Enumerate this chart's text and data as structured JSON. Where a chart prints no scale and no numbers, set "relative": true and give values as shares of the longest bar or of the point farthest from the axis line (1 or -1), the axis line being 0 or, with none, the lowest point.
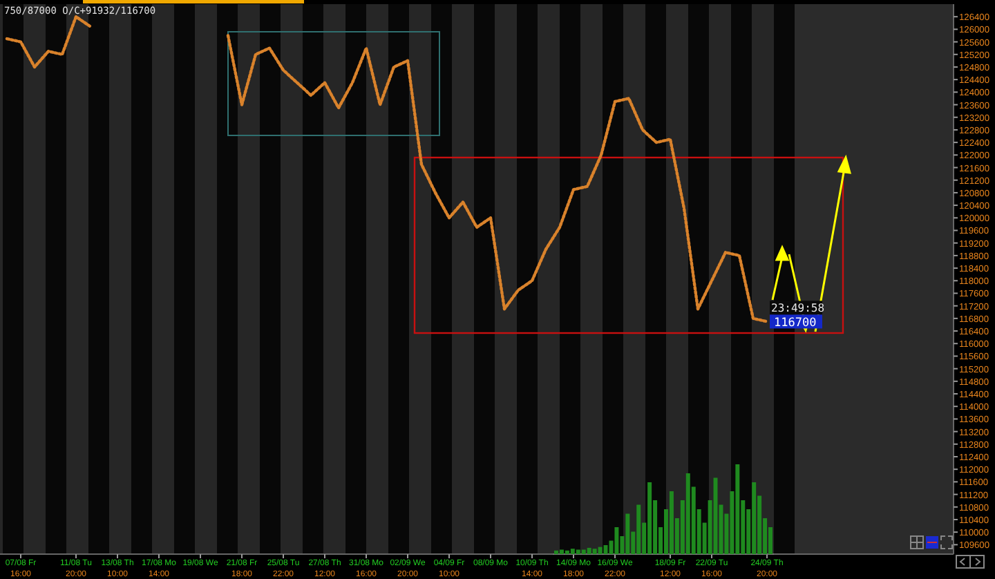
{
  "chart_data": [
    {
      "type": "line",
      "ylim": [
        109300,
        126800
      ],
      "yticks": [
        109600,
        110000,
        110400,
        110800,
        111200,
        111600,
        112000,
        112400,
        112800,
        113200,
        113600,
        114000,
        114400,
        114800,
        115200,
        115600,
        116000,
        116400,
        116800,
        117200,
        117600,
        118000,
        118400,
        118800,
        119200,
        119600,
        120000,
        120400,
        120800,
        121200,
        121600,
        122000,
        122400,
        122800,
        123200,
        123600,
        124000,
        124400,
        124800,
        125200,
        125600,
        126000,
        126400
      ],
      "categories": [
        null,
        "07/08 Fr\n16:00",
        null,
        null,
        null,
        "11/08 Tu\n20:00",
        null,
        null,
        "13/08 Th\n10:00",
        null,
        null,
        "17/08 Mo\n14:00",
        null,
        null,
        "19/08 We",
        null,
        null,
        "21/08 Fr\n18:00",
        null,
        null,
        "25/08 Tu\n22:00",
        null,
        null,
        "27/08 Th\n12:00",
        null,
        null,
        "31/08 Mo\n16:00",
        null,
        null,
        "02/09 We\n20:00",
        null,
        null,
        "04/09 Fr\n10:00",
        null,
        null,
        "08/09 Mo",
        null,
        null,
        "10/09 Th\n14:00",
        null,
        null,
        "14/09 Mo\n18:00",
        null,
        null,
        "16/09 We\n22:00",
        null,
        null,
        null,
        "18/09 Fr\n12:00",
        null,
        null,
        "22/09 Tu\n16:00",
        null,
        null,
        null,
        "24/09 Th\n20:00",
        null,
        null,
        null,
        null,
        null,
        null,
        null,
        null,
        null,
        null,
        null,
        null,
        null
      ],
      "grid": false,
      "annotations": [
        "750/87000  O/C+91932/116700",
        "23:49:58",
        "116700"
      ],
      "series": [
        {
          "color": "#d9822b",
          "line_style": "dotted",
          "values": [
            125700,
            125600,
            124800,
            125300,
            125200,
            126400,
            126100,
            null,
            null,
            null,
            null,
            null,
            null,
            null,
            null,
            null,
            125800,
            123600,
            125200,
            125400,
            124700,
            124300,
            123900,
            124300,
            123500,
            124300,
            125400,
            123600,
            124800,
            125000,
            121700,
            120800,
            120000,
            120500,
            119700,
            120000,
            117100,
            117700,
            118000,
            119000,
            119700,
            120900,
            121000,
            122000,
            123700,
            123800,
            122800,
            122400,
            122500,
            120300,
            117100,
            118000,
            118900,
            118800,
            116800,
            116700,
            null,
            null,
            null,
            null,
            null,
            null,
            null,
            null,
            null,
            null,
            null,
            null,
            null
          ]
        }
      ]
    },
    {
      "type": "bar",
      "relative": true,
      "categories": [
        null,
        null,
        null,
        null,
        null,
        null,
        null,
        null,
        null,
        null,
        null,
        null,
        null,
        null,
        null,
        null,
        null,
        null,
        null,
        null,
        null,
        null,
        null,
        null,
        null,
        null,
        null,
        null,
        null,
        null,
        null,
        null,
        null,
        null,
        null,
        null,
        null,
        null,
        null,
        null
      ],
      "color": "#1f8a1f",
      "values": [
        0.04,
        0.05,
        0.04,
        0.06,
        0.05,
        0.05,
        0.07,
        0.06,
        0.08,
        0.1,
        0.15,
        0.3,
        0.2,
        0.45,
        0.25,
        0.55,
        0.35,
        0.8,
        0.6,
        0.3,
        0.5,
        0.7,
        0.4,
        0.6,
        0.9,
        0.75,
        0.5,
        0.35,
        0.6,
        0.85,
        0.55,
        0.45,
        0.7,
        1.0,
        0.6,
        0.5,
        0.8,
        0.65,
        0.4,
        0.3
      ]
    }
  ]
}
